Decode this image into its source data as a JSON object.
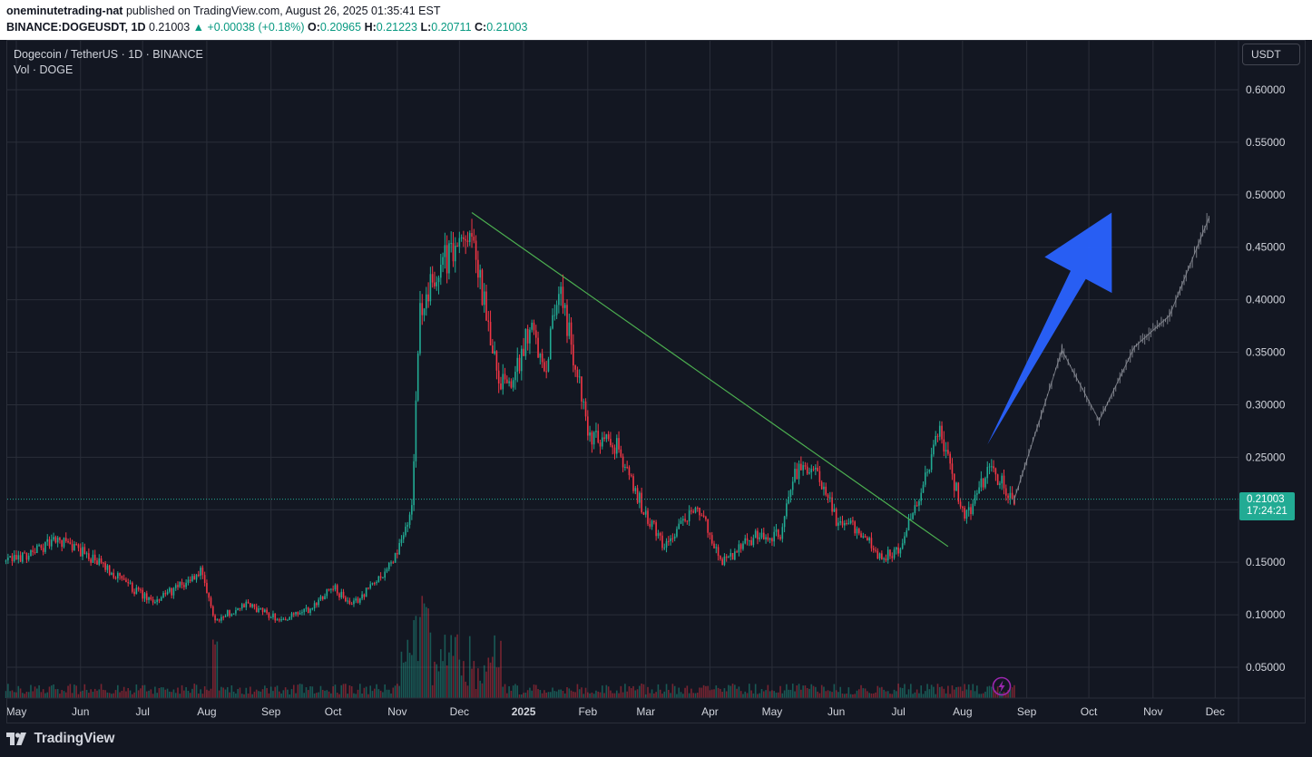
{
  "header": {
    "publisher": "oneminutetrading-nat",
    "published_text": "published on TradingView.com, August 26, 2025 01:35:41 EST",
    "symbol": "BINANCE:DOGEUSDT, 1D",
    "last": "0.21003",
    "change": "▲ +0.00038 (+0.18%)",
    "o_label": "O:",
    "o": "0.20965",
    "h_label": "H:",
    "h": "0.21223",
    "l_label": "L:",
    "l": "0.20711",
    "c_label": "C:",
    "c": "0.21003"
  },
  "legend": {
    "title": "Dogecoin / TetherUS · 1D · BINANCE",
    "volume": "Vol · DOGE"
  },
  "currency_button": "USDT",
  "price_tag": {
    "price": "0.21003",
    "countdown": "17:24:21"
  },
  "brand": "TradingView",
  "colors": {
    "background": "#131722",
    "grid": "#2a2e39",
    "up": "#22ab94",
    "down": "#f23645",
    "trendline": "#4caf50",
    "projection": "#9598a1",
    "arrow": "#2962ff"
  },
  "chart_data": {
    "type": "candlestick",
    "symbol": "DOGEUSDT",
    "timeframe": "1D",
    "y_ticks": [
      "0.60000",
      "0.55000",
      "0.50000",
      "0.45000",
      "0.40000",
      "0.35000",
      "0.30000",
      "0.25000",
      "0.20000",
      "0.15000",
      "0.10000",
      "0.05000"
    ],
    "ylim": [
      0.05,
      0.6
    ],
    "x_ticks": [
      {
        "label": "May",
        "date": "2024-05-01"
      },
      {
        "label": "Jun",
        "date": "2024-06-01"
      },
      {
        "label": "Jul",
        "date": "2024-07-01"
      },
      {
        "label": "Aug",
        "date": "2024-08-01"
      },
      {
        "label": "Sep",
        "date": "2024-09-01"
      },
      {
        "label": "Oct",
        "date": "2024-10-01"
      },
      {
        "label": "Nov",
        "date": "2024-11-01"
      },
      {
        "label": "Dec",
        "date": "2024-12-01"
      },
      {
        "label": "2025",
        "date": "2025-01-01",
        "bold": true
      },
      {
        "label": "Feb",
        "date": "2025-02-01"
      },
      {
        "label": "Mar",
        "date": "2025-03-01"
      },
      {
        "label": "Apr",
        "date": "2025-04-01"
      },
      {
        "label": "May",
        "date": "2025-05-01"
      },
      {
        "label": "Jun",
        "date": "2025-06-01"
      },
      {
        "label": "Jul",
        "date": "2025-07-01"
      },
      {
        "label": "Aug",
        "date": "2025-08-01"
      },
      {
        "label": "Sep",
        "date": "2025-09-01"
      },
      {
        "label": "Oct",
        "date": "2025-10-01"
      },
      {
        "label": "Nov",
        "date": "2025-11-01"
      },
      {
        "label": "Dec",
        "date": "2025-12-01"
      }
    ],
    "price_path": [
      [
        "2024-04-26",
        0.15
      ],
      [
        "2024-05-07",
        0.158
      ],
      [
        "2024-05-20",
        0.171
      ],
      [
        "2024-05-29",
        0.165
      ],
      [
        "2024-06-15",
        0.142
      ],
      [
        "2024-07-05",
        0.112
      ],
      [
        "2024-07-20",
        0.128
      ],
      [
        "2024-07-29",
        0.14
      ],
      [
        "2024-08-05",
        0.095
      ],
      [
        "2024-08-20",
        0.11
      ],
      [
        "2024-09-06",
        0.095
      ],
      [
        "2024-09-20",
        0.105
      ],
      [
        "2024-09-30",
        0.128
      ],
      [
        "2024-10-10",
        0.108
      ],
      [
        "2024-10-30",
        0.15
      ],
      [
        "2024-11-08",
        0.2
      ],
      [
        "2024-11-12",
        0.39
      ],
      [
        "2024-11-23",
        0.435
      ],
      [
        "2024-12-07",
        0.465
      ],
      [
        "2024-12-20",
        0.32
      ],
      [
        "2024-12-27",
        0.32
      ],
      [
        "2025-01-05",
        0.38
      ],
      [
        "2025-01-11",
        0.33
      ],
      [
        "2025-01-18",
        0.415
      ],
      [
        "2025-01-27",
        0.33
      ],
      [
        "2025-02-02",
        0.27
      ],
      [
        "2025-02-15",
        0.26
      ],
      [
        "2025-02-28",
        0.2
      ],
      [
        "2025-03-10",
        0.165
      ],
      [
        "2025-03-26",
        0.205
      ],
      [
        "2025-04-07",
        0.15
      ],
      [
        "2025-04-23",
        0.175
      ],
      [
        "2025-05-05",
        0.175
      ],
      [
        "2025-05-12",
        0.235
      ],
      [
        "2025-05-22",
        0.24
      ],
      [
        "2025-06-01",
        0.19
      ],
      [
        "2025-06-12",
        0.18
      ],
      [
        "2025-06-22",
        0.155
      ],
      [
        "2025-07-01",
        0.16
      ],
      [
        "2025-07-10",
        0.205
      ],
      [
        "2025-07-21",
        0.275
      ],
      [
        "2025-08-02",
        0.19
      ],
      [
        "2025-08-14",
        0.24
      ],
      [
        "2025-08-26",
        0.21
      ]
    ],
    "projection": [
      [
        "2025-08-26",
        0.21
      ],
      [
        "2025-09-18",
        0.352
      ],
      [
        "2025-10-06",
        0.285
      ],
      [
        "2025-10-23",
        0.355
      ],
      [
        "2025-11-09",
        0.385
      ],
      [
        "2025-11-28",
        0.478
      ]
    ],
    "trendline": [
      [
        "2024-12-07",
        0.483
      ],
      [
        "2025-07-25",
        0.165
      ]
    ],
    "arrow": {
      "from": [
        "2025-08-13",
        0.262
      ],
      "to": [
        "2025-10-12",
        0.483
      ]
    },
    "last_price": 0.21003,
    "grid": true
  }
}
